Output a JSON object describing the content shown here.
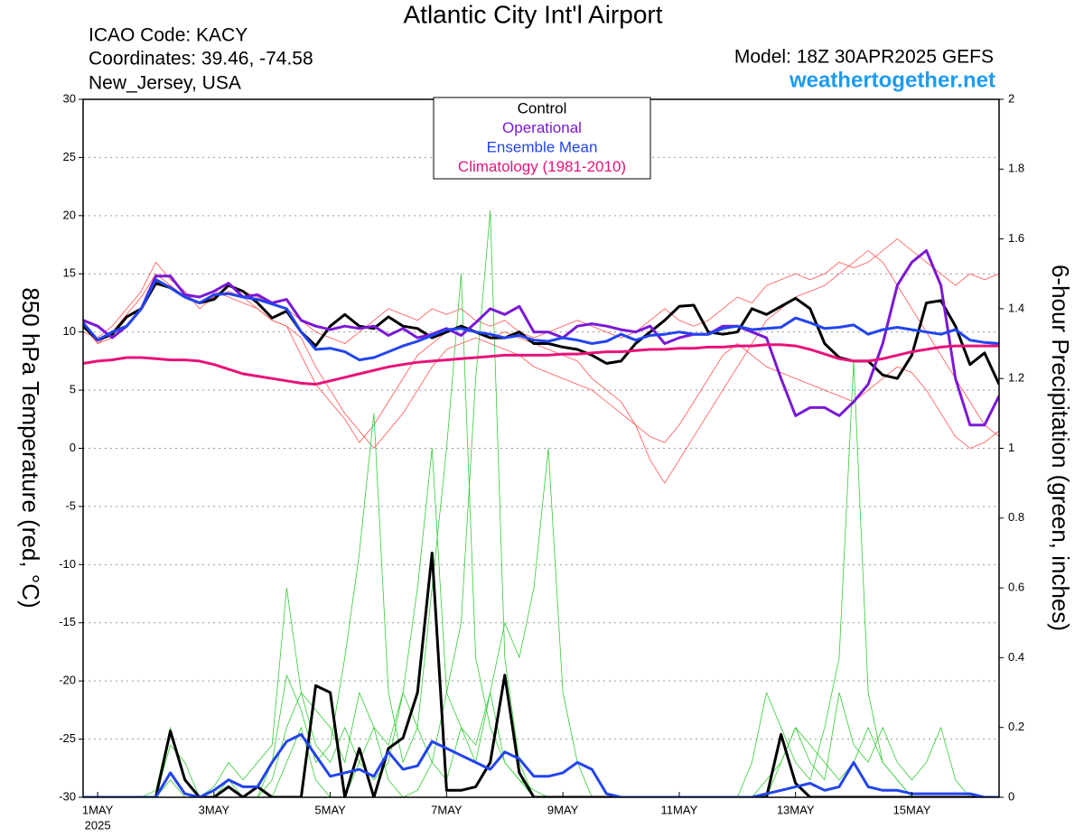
{
  "chart_data": {
    "type": "line",
    "title": "Atlantic City Int'l Airport",
    "info": [
      "ICAO Code: KACY",
      "Coordinates: 39.46, -74.58",
      "New_Jersey, USA"
    ],
    "model": "Model: 18Z 30APR2025 GEFS",
    "site": "weathertogether.net",
    "ylabel": "850 hPa Temperature (red, °C)",
    "y2label": "6-hour Precipitation (green, inches)",
    "xlim": [
      0,
      63
    ],
    "xticks": [
      {
        "value": 1,
        "label": "1MAY"
      },
      {
        "value": 9,
        "label": "3MAY"
      },
      {
        "value": 17,
        "label": "5MAY"
      },
      {
        "value": 25,
        "label": "7MAY"
      },
      {
        "value": 33,
        "label": "9MAY"
      },
      {
        "value": 41,
        "label": "11MAY"
      },
      {
        "value": 49,
        "label": "13MAY"
      },
      {
        "value": 57,
        "label": "15MAY"
      }
    ],
    "year_label": "2025",
    "ylim": [
      -30,
      30
    ],
    "yticks": [
      -30,
      -25,
      -20,
      -15,
      -10,
      -5,
      0,
      5,
      10,
      15,
      20,
      25,
      30
    ],
    "y2lim": [
      0,
      2
    ],
    "y2ticks": [
      0,
      0.2,
      0.4,
      0.6,
      0.8,
      1,
      1.2,
      1.4,
      1.6,
      1.8,
      2
    ],
    "grid": true,
    "series": [
      {
        "color": "#ff5050",
        "width": 0.8,
        "values": [
          11,
          9,
          10,
          11.5,
          13,
          15,
          14,
          13,
          13,
          13.5,
          13,
          12.5,
          12,
          11,
          10.5,
          8,
          5.5,
          4,
          2.5,
          0.5,
          2,
          4,
          6,
          8,
          9,
          10,
          10.5,
          10,
          9.5,
          10,
          9.5,
          9,
          8.5,
          8,
          7.5,
          6,
          5,
          4,
          2,
          -1,
          -3,
          -1,
          1,
          3,
          5,
          7,
          9,
          11,
          12,
          13,
          13.5,
          14,
          15,
          16,
          17,
          16,
          14,
          12,
          10,
          8,
          6,
          4,
          2,
          1
        ]
      },
      {
        "color": "#ff5050",
        "width": 0.8,
        "values": [
          10,
          9.5,
          10.5,
          12,
          13.5,
          16,
          14.5,
          13.5,
          12,
          13,
          14,
          13.5,
          13,
          12.5,
          12,
          11,
          10,
          9.5,
          9,
          10,
          11,
          12,
          11.5,
          11,
          12,
          11.5,
          12,
          11,
          10.5,
          11,
          10,
          9.5,
          10,
          10.5,
          11,
          10.5,
          10,
          9.5,
          10,
          11,
          12,
          11,
          10.5,
          11,
          12,
          13,
          12.5,
          14,
          14.5,
          15,
          14.5,
          15,
          16,
          15.5,
          16,
          17,
          18,
          17,
          16,
          15,
          14,
          15,
          14.5,
          15
        ]
      },
      {
        "color": "#ff5050",
        "width": 0.8,
        "values": [
          10.5,
          9,
          9.5,
          10.5,
          12,
          14,
          14,
          13,
          12.5,
          13,
          13.5,
          13,
          12,
          11,
          10.5,
          9.5,
          7,
          5,
          3,
          1.5,
          0,
          1.5,
          3,
          5,
          7,
          8.5,
          9,
          9.5,
          9,
          8.5,
          8,
          7,
          6.5,
          6,
          5.5,
          5,
          4,
          3,
          2,
          1,
          0.5,
          2,
          4,
          6,
          8,
          9,
          8,
          7,
          6.5,
          6,
          5.5,
          5,
          4.5,
          4,
          5,
          6,
          7,
          6.5,
          5,
          3,
          1,
          0,
          0.5,
          1.5
        ]
      },
      {
        "axis": "y2",
        "color": "#33cc33",
        "width": 0.8,
        "values": [
          0,
          0,
          0,
          0,
          0,
          0,
          0.05,
          0,
          0,
          0,
          0,
          0,
          0,
          0,
          0.1,
          0.2,
          0.05,
          0,
          0,
          0.1,
          0.2,
          0.05,
          0,
          0.02,
          0.1,
          0.3,
          0.5,
          1.2,
          1.68,
          0.4,
          0.1,
          0,
          0,
          0,
          0,
          0,
          0,
          0,
          0,
          0,
          0,
          0,
          0,
          0,
          0,
          0,
          0,
          0,
          0,
          0,
          0,
          0,
          0,
          0,
          0,
          0,
          0,
          0,
          0,
          0,
          0,
          0,
          0,
          0
        ]
      },
      {
        "axis": "y2",
        "color": "#33cc33",
        "width": 0.8,
        "values": [
          0,
          0,
          0,
          0,
          0,
          0,
          0.15,
          0.1,
          0,
          0,
          0.05,
          0,
          0,
          0.1,
          0.35,
          0.25,
          0.1,
          0.15,
          0.4,
          0.7,
          1.1,
          0.3,
          0.1,
          0.2,
          0.6,
          1.0,
          1.5,
          0.4,
          0.2,
          0.1,
          0.05,
          0,
          0,
          0,
          0,
          0,
          0,
          0,
          0,
          0,
          0,
          0,
          0,
          0,
          0,
          0,
          0,
          0.05,
          0.1,
          0.2,
          0.15,
          0.1,
          0.05,
          0.1,
          0.2,
          0.1,
          0.05,
          0,
          0,
          0,
          0,
          0,
          0,
          0
        ]
      },
      {
        "axis": "y2",
        "color": "#33cc33",
        "width": 0.8,
        "values": [
          0,
          0,
          0,
          0,
          0,
          0,
          0,
          0,
          0,
          0,
          0,
          0,
          0,
          0.05,
          0.2,
          0.3,
          0.15,
          0.1,
          0.2,
          0.1,
          0.05,
          0.1,
          0.3,
          0.2,
          0.1,
          0.05,
          0.2,
          0.1,
          0.3,
          0.5,
          0.4,
          0.6,
          1.0,
          0.3,
          0.1,
          0,
          0,
          0,
          0,
          0,
          0,
          0,
          0,
          0,
          0,
          0,
          0.1,
          0.3,
          0.2,
          0.1,
          0.05,
          0.2,
          0.4,
          1.25,
          0.3,
          0.1,
          0.05,
          0,
          0,
          0,
          0,
          0,
          0,
          0
        ]
      },
      {
        "axis": "y2",
        "color": "#33cc33",
        "width": 0.8,
        "values": [
          0,
          0,
          0,
          0,
          0,
          0.02,
          0.2,
          0.05,
          0,
          0.03,
          0.1,
          0.05,
          0.1,
          0.15,
          0.6,
          0.3,
          0.25,
          0.2,
          0.1,
          0.3,
          0.2,
          0.15,
          0.3,
          0.6,
          1.0,
          0.3,
          0.2,
          0.15,
          0.3,
          0.1,
          0.05,
          0.02,
          0,
          0,
          0,
          0,
          0,
          0,
          0,
          0,
          0,
          0,
          0,
          0,
          0,
          0,
          0,
          0,
          0.1,
          0.2,
          0.1,
          0.05,
          0.3,
          0.15,
          0.1,
          0.2,
          0.1,
          0.05,
          0.1,
          0.2,
          0.05,
          0,
          0,
          0
        ]
      },
      {
        "axis": "y2",
        "color": "#000000",
        "width": 3,
        "values": [
          0,
          0,
          0,
          0,
          0,
          0,
          0.19,
          0.05,
          0,
          0,
          0.03,
          0,
          0.03,
          0,
          0,
          0,
          0.32,
          0.3,
          0,
          0.14,
          0,
          0.14,
          0.17,
          0.3,
          0.7,
          0.02,
          0.02,
          0.03,
          0.1,
          0.35,
          0.07,
          0,
          0,
          0,
          0,
          0,
          0,
          0,
          0,
          0,
          0,
          0,
          0,
          0,
          0,
          0,
          0,
          0,
          0.18,
          0.04,
          0,
          0,
          0,
          0,
          0,
          0,
          0,
          0,
          0,
          0,
          0,
          0,
          0,
          0
        ]
      },
      {
        "axis": "y2",
        "color": "#2244ee",
        "width": 3,
        "values": [
          0,
          0,
          0,
          0,
          0,
          0,
          0.07,
          0.01,
          0,
          0.02,
          0.05,
          0.03,
          0.03,
          0.1,
          0.16,
          0.18,
          0.12,
          0.06,
          0.07,
          0.08,
          0.06,
          0.13,
          0.08,
          0.09,
          0.16,
          0.14,
          0.12,
          0.1,
          0.08,
          0.13,
          0.11,
          0.06,
          0.06,
          0.07,
          0.1,
          0.08,
          0.01,
          0,
          0,
          0,
          0,
          0,
          0,
          0,
          0,
          0,
          0,
          0.01,
          0.02,
          0.03,
          0.04,
          0.02,
          0.03,
          0.1,
          0.03,
          0.02,
          0.02,
          0.01,
          0.01,
          0.01,
          0.01,
          0.01,
          0,
          0
        ]
      },
      {
        "name": "Control",
        "color": "#000000",
        "width": 3,
        "values": [
          10.5,
          9.3,
          9.8,
          11.3,
          12,
          14.2,
          13.8,
          13,
          12.5,
          12.8,
          14,
          13.5,
          12.5,
          11.2,
          11.8,
          10,
          8.8,
          10.5,
          11.5,
          10.5,
          10.3,
          11.3,
          10.5,
          10.3,
          9.5,
          10,
          10.5,
          10,
          9.5,
          9.5,
          10,
          9,
          9,
          8.7,
          8.5,
          8,
          7.3,
          7.5,
          9,
          10,
          11,
          12.2,
          12.3,
          10,
          9.8,
          10,
          12,
          11.5,
          12.2,
          12.9,
          12,
          9,
          7.8,
          7.5,
          7.5,
          6.3,
          6,
          8,
          12.5,
          12.7,
          10.5,
          7.2,
          8.2,
          5.5
        ]
      },
      {
        "name": "Operational",
        "color": "#7b18d6",
        "width": 3,
        "values": [
          11,
          10.5,
          9.5,
          10.5,
          12,
          14.8,
          14.8,
          13.2,
          13,
          13.5,
          14.2,
          13,
          13.2,
          12.5,
          12.8,
          11,
          10.5,
          10.2,
          10.5,
          10.3,
          10.5,
          9.7,
          10.3,
          9.5,
          9.8,
          10.3,
          9.7,
          10.8,
          12,
          11.5,
          12.2,
          10,
          10,
          9.5,
          10.5,
          10.7,
          10.5,
          10.2,
          10,
          10.5,
          9,
          9.5,
          9.8,
          9.8,
          10.5,
          10.5,
          10,
          9.5,
          6,
          2.8,
          3.5,
          3.5,
          2.8,
          4,
          5.5,
          9,
          14,
          16,
          17,
          14,
          6,
          2,
          2,
          4.5
        ]
      },
      {
        "name": "Ensemble Mean",
        "color": "#2244ee",
        "width": 3,
        "values": [
          10.8,
          9.3,
          10,
          10.5,
          12,
          14.5,
          13.8,
          13,
          12.5,
          13.2,
          13.3,
          13,
          12.8,
          12.4,
          12,
          10,
          8.5,
          8.6,
          8.3,
          7.6,
          7.8,
          8.3,
          8.8,
          9.2,
          9.7,
          10.2,
          10.3,
          10,
          9.8,
          9.5,
          9.7,
          9.3,
          9.2,
          9.5,
          9.3,
          9,
          9.2,
          9.8,
          9.3,
          9.7,
          9.8,
          10,
          9.8,
          9.8,
          10.3,
          10.5,
          10.2,
          10.3,
          10.4,
          11.2,
          10.8,
          10.3,
          10.4,
          10.6,
          9.8,
          10.2,
          10.4,
          10.2,
          10,
          9.8,
          10.2,
          9.3,
          9.1,
          9
        ]
      },
      {
        "name": "Climatology (1981-2010)",
        "color": "#e8127a",
        "width": 3,
        "values": [
          7.3,
          7.5,
          7.6,
          7.8,
          7.8,
          7.7,
          7.6,
          7.6,
          7.5,
          7.2,
          6.8,
          6.4,
          6.2,
          6,
          5.8,
          5.6,
          5.5,
          5.8,
          6.1,
          6.4,
          6.7,
          7,
          7.2,
          7.4,
          7.5,
          7.6,
          7.7,
          7.8,
          7.9,
          8,
          8,
          8,
          8,
          8.1,
          8.1,
          8.2,
          8.3,
          8.3,
          8.4,
          8.5,
          8.5,
          8.6,
          8.6,
          8.7,
          8.7,
          8.8,
          8.8,
          8.9,
          8.9,
          8.8,
          8.5,
          8.1,
          7.7,
          7.5,
          7.5,
          7.7,
          8,
          8.3,
          8.5,
          8.7,
          8.8,
          8.8,
          8.8,
          8.8
        ]
      }
    ]
  }
}
